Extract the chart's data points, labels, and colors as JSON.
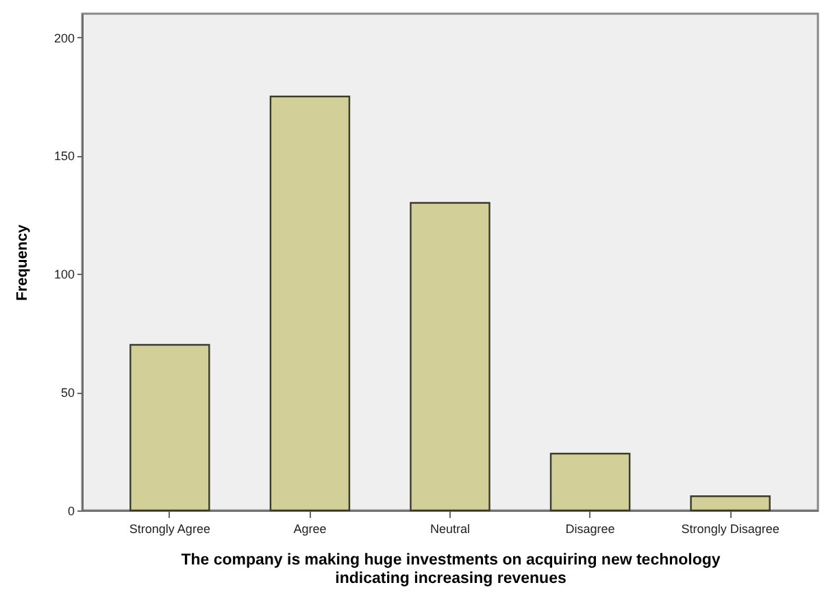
{
  "chart_data": {
    "type": "bar",
    "xlabel": "The company is making huge investments on acquiring new technology\nindicating increasing revenues",
    "ylabel": "Frequency",
    "categories": [
      "Strongly Agree",
      "Agree",
      "Neutral",
      "Disagree",
      "Strongly Disagree"
    ],
    "values": [
      70,
      175,
      130,
      24,
      6
    ],
    "color": "#d3cf98",
    "ylim": [
      0,
      210
    ],
    "yticks": [
      0,
      50,
      100,
      150,
      200
    ],
    "grid": false
  }
}
